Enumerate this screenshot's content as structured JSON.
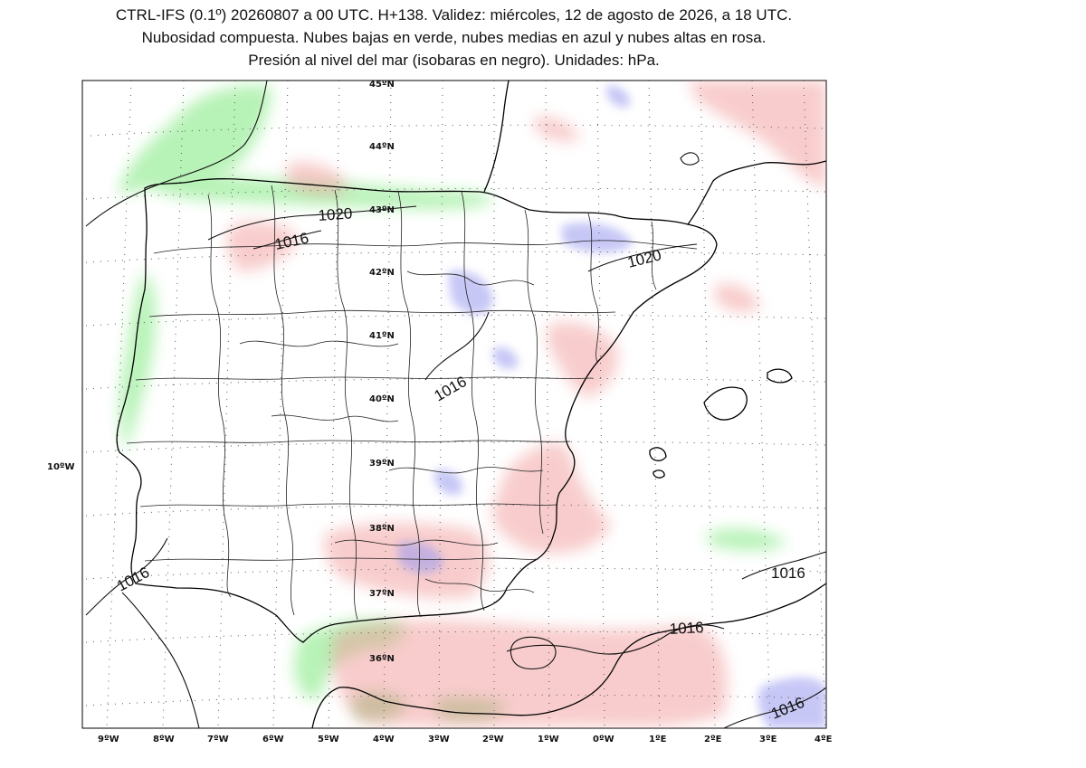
{
  "header": {
    "line1": "CTRL-IFS (0.1º) 20260807 a 00 UTC. H+138. Validez: miércoles, 12 de agosto de 2026, a 18 UTC.",
    "line2": "Nubosidad compuesta. Nubes bajas en verde, nubes medias en azul y nubes altas en rosa.",
    "line3": "Presión al nivel del mar (isobaras en negro). Unidades: hPa."
  },
  "map": {
    "lat_labels": [
      "45ºN",
      "44ºN",
      "43ºN",
      "42ºN",
      "41ºN",
      "40ºN",
      "39ºN",
      "38ºN",
      "37ºN",
      "36ºN"
    ],
    "lon_labels": [
      "9ºW",
      "8ºW",
      "7ºW",
      "6ºW",
      "5ºW",
      "4ºW",
      "3ºW",
      "2ºW",
      "1ºW",
      "0ºW",
      "1ºE",
      "2ºE",
      "3ºE",
      "4ºE"
    ],
    "side_label": "10ºW",
    "isobars": {
      "cantabria": "1020",
      "asturias": "1016",
      "catalonia": "1020",
      "center": "1016",
      "portugal": "1016",
      "baleares_south": "1016",
      "alboran": "1016",
      "southeast": "1016"
    },
    "colors": {
      "low_clouds": "#7de87d",
      "mid_clouds": "#9a9af0",
      "high_clouds": "#f29a9a"
    }
  }
}
